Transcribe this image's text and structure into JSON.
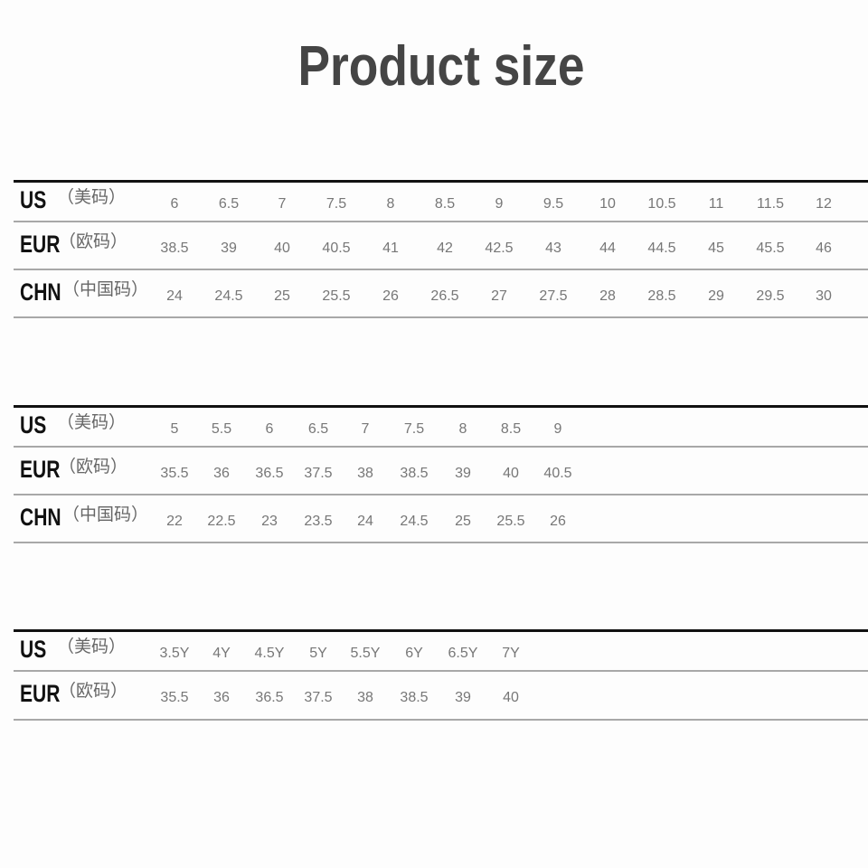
{
  "title": "Product size",
  "tables": [
    {
      "rows": [
        {
          "label": "US",
          "sub": "（美码）",
          "values": [
            "6",
            "6.5",
            "7",
            "7.5",
            "8",
            "8.5",
            "9",
            "9.5",
            "10",
            "10.5",
            "11",
            "11.5",
            "12"
          ]
        },
        {
          "label": "EUR",
          "sub": "（欧码）",
          "values": [
            "38.5",
            "39",
            "40",
            "40.5",
            "41",
            "42",
            "42.5",
            "43",
            "44",
            "44.5",
            "45",
            "45.5",
            "46"
          ]
        },
        {
          "label": "CHN",
          "sub": "（中国码）",
          "values": [
            "24",
            "24.5",
            "25",
            "25.5",
            "26",
            "26.5",
            "27",
            "27.5",
            "28",
            "28.5",
            "29",
            "29.5",
            "30"
          ]
        }
      ]
    },
    {
      "rows": [
        {
          "label": "US",
          "sub": "（美码）",
          "values": [
            "5",
            "5.5",
            "6",
            "6.5",
            "7",
            "7.5",
            "8",
            "8.5",
            "9"
          ]
        },
        {
          "label": "EUR",
          "sub": "（欧码）",
          "values": [
            "35.5",
            "36",
            "36.5",
            "37.5",
            "38",
            "38.5",
            "39",
            "40",
            "40.5"
          ]
        },
        {
          "label": "CHN",
          "sub": "（中国码）",
          "values": [
            "22",
            "22.5",
            "23",
            "23.5",
            "24",
            "24.5",
            "25",
            "25.5",
            "26"
          ]
        }
      ]
    },
    {
      "rows": [
        {
          "label": "US",
          "sub": "（美码）",
          "values": [
            "3.5Y",
            "4Y",
            "4.5Y",
            "5Y",
            "5.5Y",
            "6Y",
            "6.5Y",
            "7Y"
          ]
        },
        {
          "label": "EUR",
          "sub": "（欧码）",
          "values": [
            "35.5",
            "36",
            "36.5",
            "37.5",
            "38",
            "38.5",
            "39",
            "40"
          ]
        }
      ]
    }
  ]
}
